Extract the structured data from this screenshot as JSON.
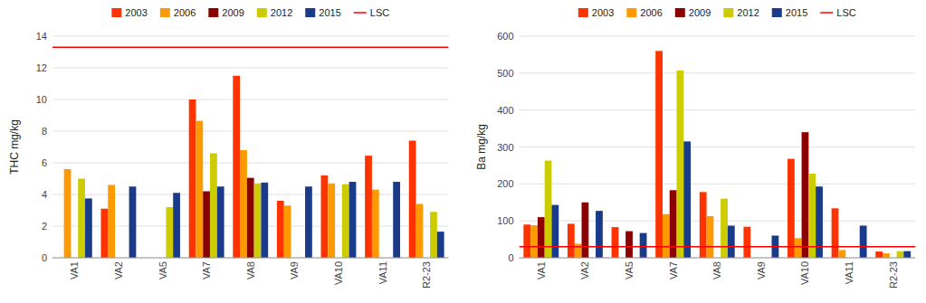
{
  "chart_data": [
    {
      "type": "bar",
      "ylabel": "THC mg/kg",
      "categories": [
        "VA1",
        "VA2",
        "VA5",
        "VA7",
        "VA8",
        "VA9",
        "VA10",
        "VA11",
        "R2-23"
      ],
      "series": [
        {
          "name": "2003",
          "color": "#FF3300",
          "values": [
            null,
            3.1,
            null,
            10.0,
            11.5,
            3.6,
            5.2,
            6.45,
            7.4
          ]
        },
        {
          "name": "2006",
          "color": "#FF9900",
          "values": [
            5.6,
            4.6,
            null,
            8.65,
            6.8,
            3.3,
            4.7,
            4.3,
            3.4
          ]
        },
        {
          "name": "2009",
          "color": "#8B0000",
          "values": [
            null,
            null,
            null,
            4.2,
            5.05,
            null,
            null,
            null,
            null
          ]
        },
        {
          "name": "2012",
          "color": "#CCCC00",
          "values": [
            5.0,
            null,
            3.2,
            6.6,
            4.7,
            null,
            4.65,
            null,
            2.9
          ]
        },
        {
          "name": "2015",
          "color": "#1A3A8A",
          "values": [
            3.75,
            4.5,
            4.1,
            4.5,
            4.75,
            4.5,
            4.8,
            4.8,
            1.65
          ]
        }
      ],
      "reference_lines": [
        {
          "name": "LSC",
          "value": 13.3,
          "color": "#FF0000"
        }
      ],
      "ylim": [
        0,
        14
      ],
      "yticks": [
        0,
        2,
        4,
        6,
        8,
        10,
        12,
        14
      ],
      "grid": true,
      "legend": "top"
    },
    {
      "type": "bar",
      "ylabel": "Ba mg/kg",
      "categories": [
        "VA1",
        "VA2",
        "VA5",
        "VA7",
        "VA8",
        "VA9",
        "VA10",
        "VA11",
        "R2-23"
      ],
      "series": [
        {
          "name": "2003",
          "color": "#FF3300",
          "values": [
            90,
            92,
            83,
            560,
            178,
            84,
            268,
            134,
            17
          ]
        },
        {
          "name": "2006",
          "color": "#FF9900",
          "values": [
            88,
            38,
            null,
            118,
            113,
            null,
            53,
            21,
            12
          ]
        },
        {
          "name": "2009",
          "color": "#8B0000",
          "values": [
            110,
            150,
            72,
            183,
            null,
            null,
            340,
            null,
            null
          ]
        },
        {
          "name": "2012",
          "color": "#CCCC00",
          "values": [
            263,
            null,
            null,
            507,
            160,
            null,
            228,
            null,
            18
          ]
        },
        {
          "name": "2015",
          "color": "#1A3A8A",
          "values": [
            143,
            127,
            67,
            315,
            87,
            60,
            193,
            87,
            18
          ]
        }
      ],
      "reference_lines": [
        {
          "name": "LSC",
          "value": 30,
          "color": "#FF0000"
        }
      ],
      "ylim": [
        0,
        600
      ],
      "yticks": [
        0,
        100,
        200,
        300,
        400,
        500,
        600
      ],
      "grid": true,
      "legend": "top"
    }
  ]
}
